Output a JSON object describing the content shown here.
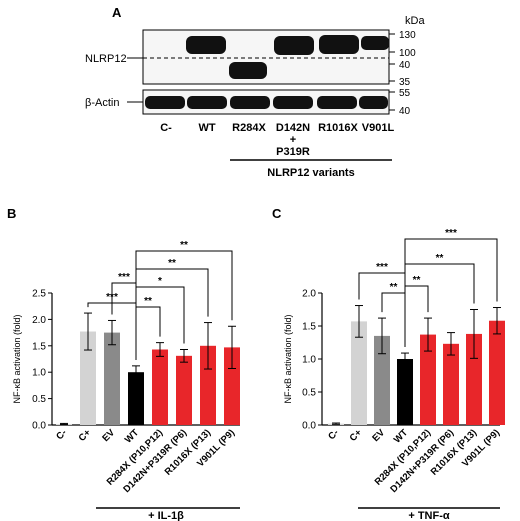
{
  "figure": {
    "panel_a": {
      "letter": "A",
      "kda_label": "kDa",
      "row_label_top": "NLRP12",
      "row_label_bottom": "β-Actin",
      "ladder_top": [
        "130",
        "100",
        "40",
        "35"
      ],
      "ladder_bottom": [
        "55",
        "40"
      ],
      "lanes": [
        "C-",
        "WT",
        "R284X",
        "D142N",
        "R1016X",
        "V901L"
      ],
      "lane4_extra": [
        "+",
        "P319R"
      ],
      "group_label": "NLRP12 variants"
    },
    "panel_b": {
      "letter": "B",
      "treatment": "+ IL-1β"
    },
    "panel_c": {
      "letter": "C",
      "treatment": "+ TNF-α"
    }
  },
  "chart_data": [
    {
      "type": "bar",
      "ylabel": "NF-κB activation (fold)",
      "ylim": [
        0,
        2.5
      ],
      "yticks": [
        "0.0",
        "0.5",
        "1.0",
        "1.5",
        "2.0",
        "2.5"
      ],
      "categories": [
        "C-",
        "C+",
        "EV",
        "WT",
        "R284X (P10,P12)",
        "D142N+P319R (P6)",
        "R1016X (P13)",
        "V901L (P9)"
      ],
      "values": [
        0.02,
        1.77,
        1.75,
        1.0,
        1.43,
        1.31,
        1.5,
        1.47
      ],
      "errors": [
        0.01,
        0.35,
        0.23,
        0.12,
        0.13,
        0.12,
        0.44,
        0.4
      ],
      "colors": [
        "#d9d9d9",
        "#d3d3d3",
        "#8a8a8a",
        "#000000",
        "#e8262a",
        "#e8262a",
        "#e8262a",
        "#e8262a"
      ],
      "significance": [
        {
          "from": "C+",
          "to": "WT",
          "label": "***"
        },
        {
          "from": "EV",
          "to": "WT",
          "label": "***"
        },
        {
          "from": "WT",
          "to": "R284X (P10,P12)",
          "label": "**"
        },
        {
          "from": "WT",
          "to": "D142N+P319R (P6)",
          "label": "*"
        },
        {
          "from": "WT",
          "to": "R1016X (P13)",
          "label": "**"
        },
        {
          "from": "WT",
          "to": "V901L (P9)",
          "label": "**"
        }
      ]
    },
    {
      "type": "bar",
      "ylabel": "NF-κB activation (fold)",
      "ylim": [
        0,
        2.0
      ],
      "yticks": [
        "0.0",
        "0.5",
        "1.0",
        "1.5",
        "2.0"
      ],
      "categories": [
        "C-",
        "C+",
        "EV",
        "WT",
        "R284X (P10,P12)",
        "D142N+P319R (P6)",
        "R1016X (P13)",
        "V901L (P9)"
      ],
      "values": [
        0.02,
        1.57,
        1.35,
        1.0,
        1.37,
        1.23,
        1.38,
        1.58
      ],
      "errors": [
        0.01,
        0.24,
        0.27,
        0.09,
        0.25,
        0.17,
        0.37,
        0.2
      ],
      "colors": [
        "#d9d9d9",
        "#d3d3d3",
        "#8a8a8a",
        "#000000",
        "#e8262a",
        "#e8262a",
        "#e8262a",
        "#e8262a"
      ],
      "significance": [
        {
          "from": "C+",
          "to": "WT",
          "label": "***"
        },
        {
          "from": "EV",
          "to": "WT",
          "label": "**"
        },
        {
          "from": "WT",
          "to": "R284X (P10,P12)",
          "label": "**"
        },
        {
          "from": "WT",
          "to": "R1016X (P13)",
          "label": "**"
        },
        {
          "from": "WT",
          "to": "V901L (P9)",
          "label": "***"
        }
      ]
    }
  ]
}
